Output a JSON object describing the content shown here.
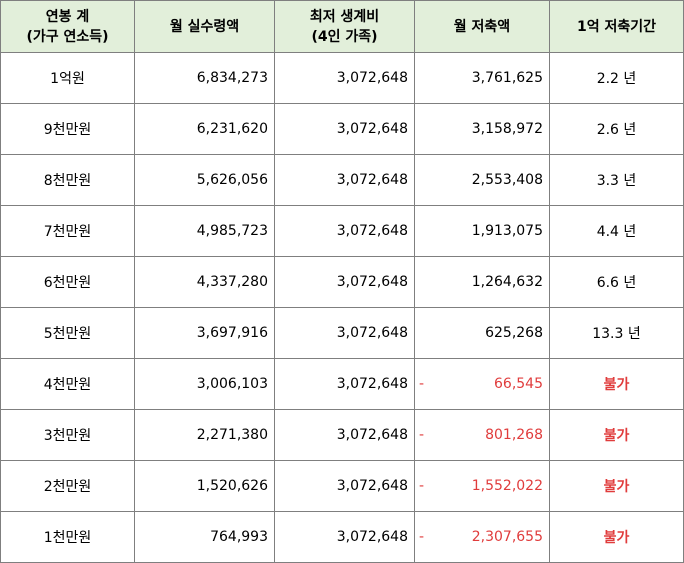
{
  "headers": [
    [
      "연봉 계",
      "(가구 연소득)"
    ],
    [
      "월 실수령액"
    ],
    [
      "최저 생계비",
      "(4인 가족)"
    ],
    [
      "월 저축액"
    ],
    [
      "1억 저축기간"
    ]
  ],
  "rows": [
    {
      "income": "1억원",
      "monthly_net": "6,834,273",
      "min_living": "3,072,648",
      "neg": false,
      "savings": "3,761,625",
      "period": "2.2 년"
    },
    {
      "income": "9천만원",
      "monthly_net": "6,231,620",
      "min_living": "3,072,648",
      "neg": false,
      "savings": "3,158,972",
      "period": "2.6 년"
    },
    {
      "income": "8천만원",
      "monthly_net": "5,626,056",
      "min_living": "3,072,648",
      "neg": false,
      "savings": "2,553,408",
      "period": "3.3 년"
    },
    {
      "income": "7천만원",
      "monthly_net": "4,985,723",
      "min_living": "3,072,648",
      "neg": false,
      "savings": "1,913,075",
      "period": "4.4 년"
    },
    {
      "income": "6천만원",
      "monthly_net": "4,337,280",
      "min_living": "3,072,648",
      "neg": false,
      "savings": "1,264,632",
      "period": "6.6 년"
    },
    {
      "income": "5천만원",
      "monthly_net": "3,697,916",
      "min_living": "3,072,648",
      "neg": false,
      "savings": "625,268",
      "period": "13.3 년"
    },
    {
      "income": "4천만원",
      "monthly_net": "3,006,103",
      "min_living": "3,072,648",
      "neg": true,
      "minus": "-",
      "savings": "66,545",
      "period": "불가"
    },
    {
      "income": "3천만원",
      "monthly_net": "2,271,380",
      "min_living": "3,072,648",
      "neg": true,
      "minus": "-",
      "savings": "801,268",
      "period": "불가"
    },
    {
      "income": "2천만원",
      "monthly_net": "1,520,626",
      "min_living": "3,072,648",
      "neg": true,
      "minus": "-",
      "savings": "1,552,022",
      "period": "불가"
    },
    {
      "income": "1천만원",
      "monthly_net": "764,993",
      "min_living": "3,072,648",
      "neg": true,
      "minus": "-",
      "savings": "2,307,655",
      "period": "불가"
    }
  ],
  "colors": {
    "header_bg": "#e2efda",
    "negative": "#e03c3c",
    "border": "#7f7f7f"
  }
}
